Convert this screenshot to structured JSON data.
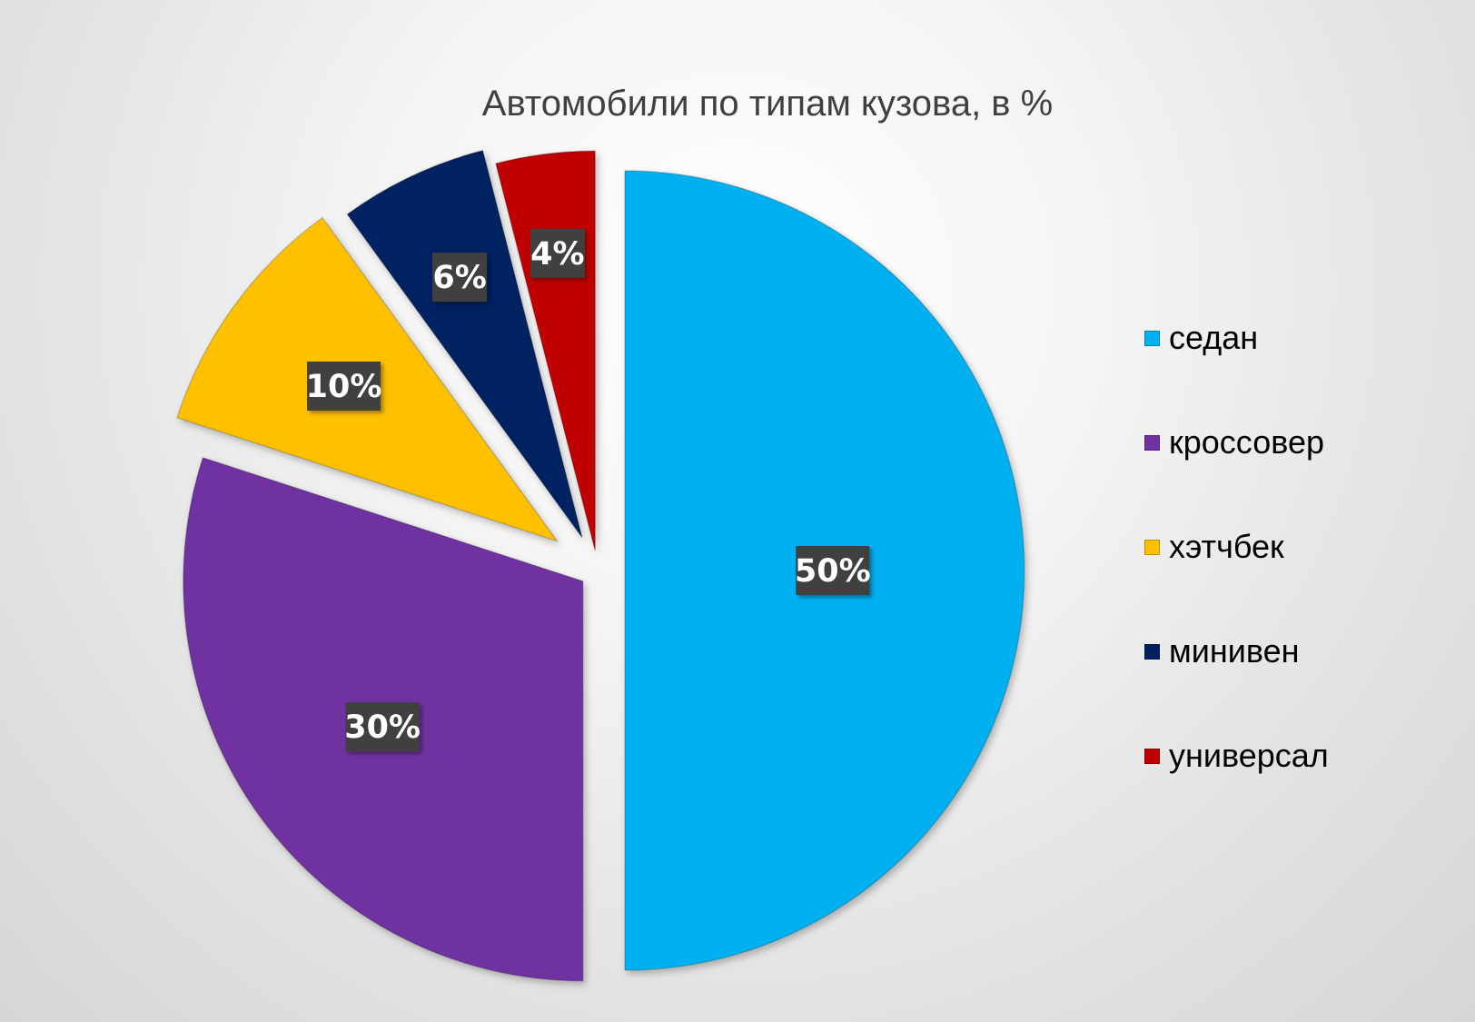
{
  "chart_data": {
    "type": "pie",
    "title": "Автомобили по типам кузова, в %",
    "categories": [
      "седан",
      "кроссовер",
      "хэтчбек",
      "минивен",
      "универсал"
    ],
    "values": [
      50,
      30,
      10,
      6,
      4
    ],
    "labels": [
      "50%",
      "30%",
      "10%",
      "6%",
      "4%"
    ],
    "colors": [
      "#00B0F0",
      "#7030A0",
      "#FFC000",
      "#002060",
      "#C00000"
    ],
    "label_box_color": "#404040",
    "legend_position": "right",
    "exploded": true
  }
}
